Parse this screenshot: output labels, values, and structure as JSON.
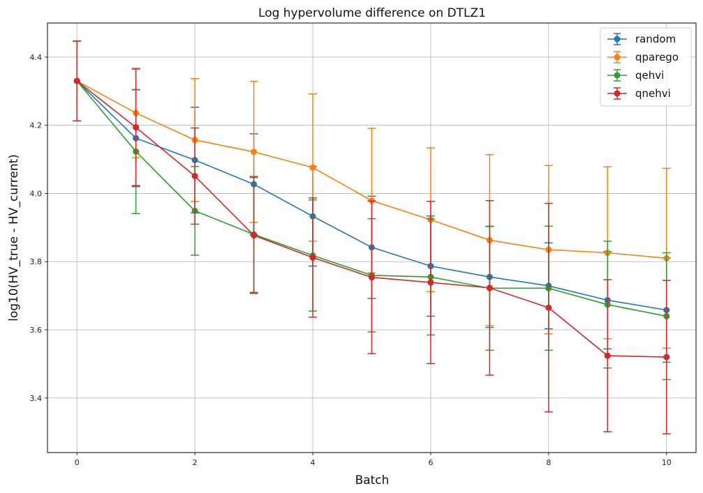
{
  "chart_data": {
    "type": "line",
    "title": "Log hypervolume difference on DTLZ1",
    "xlabel": "Batch",
    "ylabel": "log10(HV_true - HV_current)",
    "xlim": [
      -0.5,
      10.5
    ],
    "ylim": [
      3.24,
      4.5
    ],
    "xticks": [
      0,
      2,
      4,
      6,
      8,
      10
    ],
    "yticks": [
      3.4,
      3.6,
      3.8,
      4.0,
      4.2,
      4.4
    ],
    "xtick_labels": [
      "0",
      "2",
      "4",
      "6",
      "8",
      "10"
    ],
    "ytick_labels": [
      "3.4",
      "3.6",
      "3.8",
      "4.0",
      "4.2",
      "4.4"
    ],
    "grid": true,
    "legend_position": "top-right",
    "error_bars": true,
    "x": [
      0,
      1,
      2,
      3,
      4,
      5,
      6,
      7,
      8,
      9,
      10
    ],
    "series": [
      {
        "name": "random",
        "color": "#1f77b4",
        "values": [
          4.33,
          4.162,
          4.098,
          4.027,
          3.933,
          3.842,
          3.787,
          3.755,
          3.729,
          3.687,
          3.658
        ],
        "err": [
          0.117,
          0.142,
          0.155,
          0.148,
          0.146,
          0.15,
          0.147,
          0.148,
          0.126,
          0.143,
          0.153
        ]
      },
      {
        "name": "qparego",
        "color": "#ff7f0e",
        "values": [
          4.33,
          4.236,
          4.157,
          4.122,
          4.076,
          3.979,
          3.923,
          3.863,
          3.835,
          3.826,
          3.81
        ],
        "err": [
          0.117,
          0.131,
          0.18,
          0.207,
          0.216,
          0.212,
          0.211,
          0.251,
          0.247,
          0.252,
          0.264
        ]
      },
      {
        "name": "qehvi",
        "color": "#2ca02c",
        "values": [
          4.33,
          4.123,
          3.949,
          3.88,
          3.818,
          3.76,
          3.755,
          3.722,
          3.722,
          3.674,
          3.64
        ],
        "err": [
          0.117,
          0.182,
          0.13,
          0.17,
          0.163,
          0.166,
          0.17,
          0.182,
          0.182,
          0.186,
          0.186
        ]
      },
      {
        "name": "qnehvi",
        "color": "#d62728",
        "values": [
          4.33,
          4.194,
          4.051,
          3.877,
          3.812,
          3.754,
          3.739,
          3.723,
          3.665,
          3.524,
          3.52
        ],
        "err": [
          0.117,
          0.171,
          0.141,
          0.17,
          0.175,
          0.224,
          0.238,
          0.256,
          0.306,
          0.223,
          0.225
        ]
      }
    ]
  }
}
